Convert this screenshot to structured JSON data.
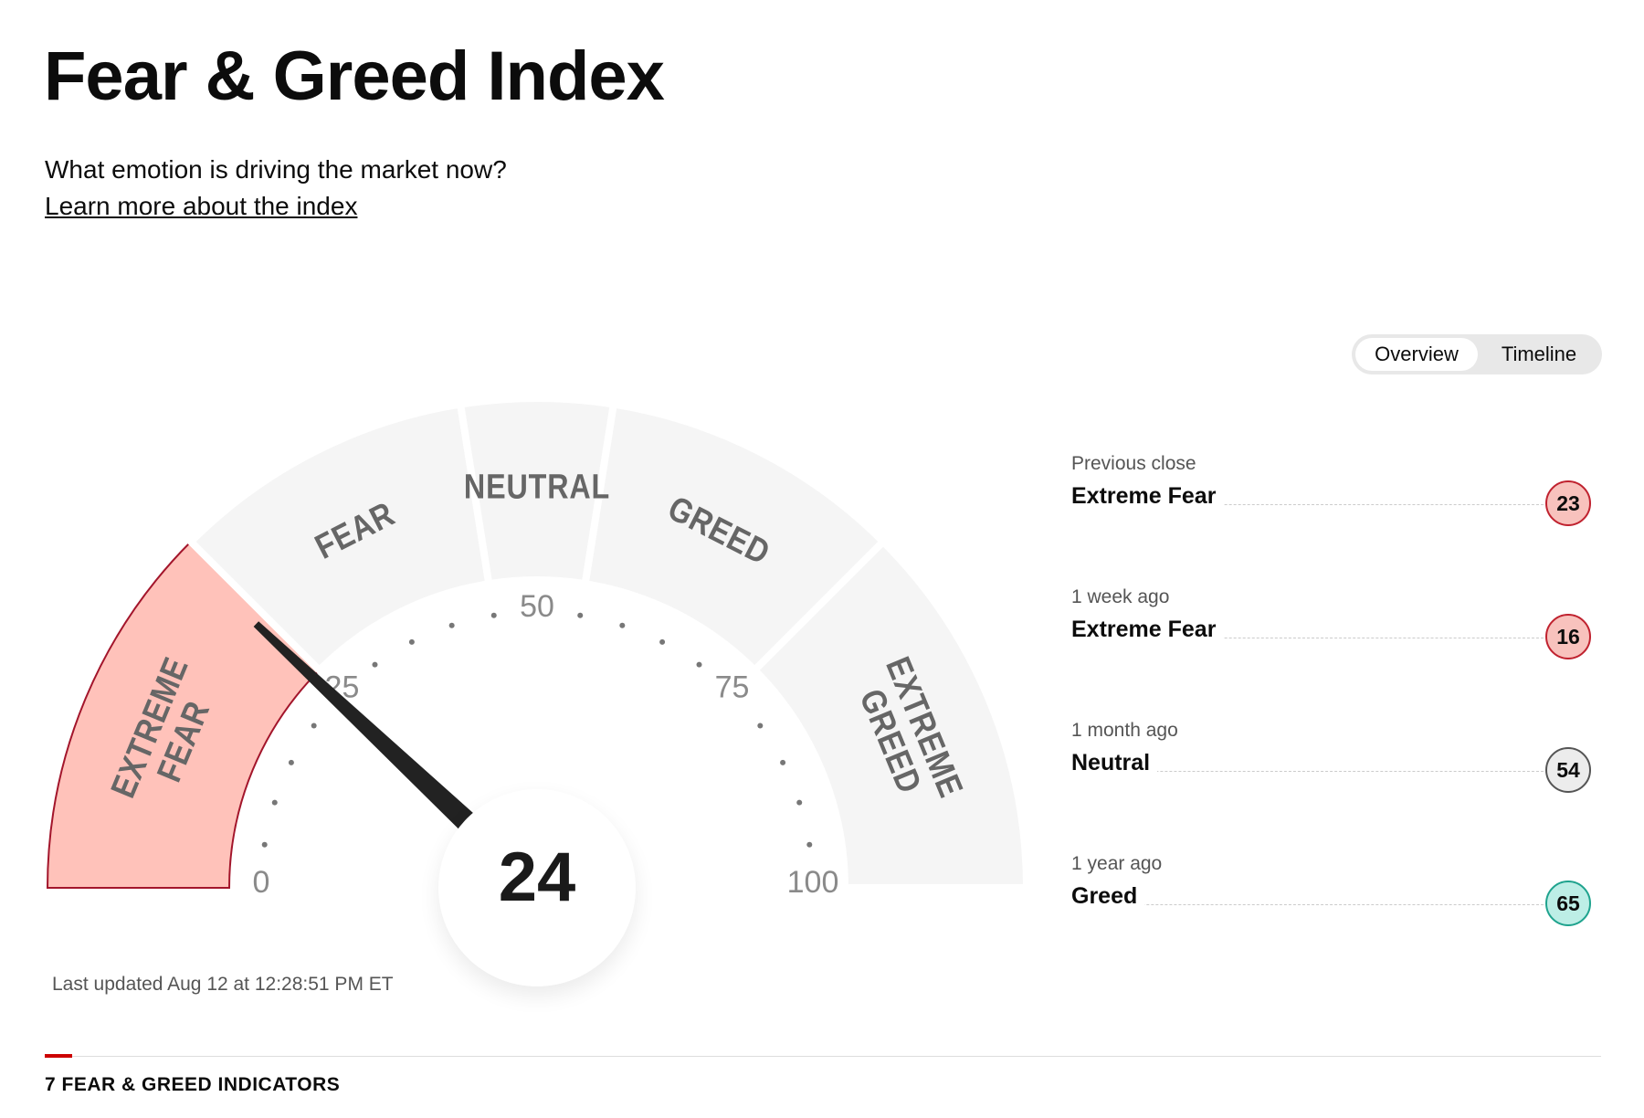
{
  "header": {
    "title": "Fear & Greed Index",
    "subtitle": "What emotion is driving the market now?",
    "link": "Learn more about the index"
  },
  "tabs": [
    "Overview",
    "Timeline"
  ],
  "gauge": {
    "value": 24,
    "range": [
      0,
      100
    ],
    "ticks": [
      0,
      25,
      50,
      75,
      100
    ],
    "segments": [
      [
        "EXTREME",
        "FEAR"
      ],
      [
        "FEAR"
      ],
      [
        "NEUTRAL"
      ],
      [
        "GREED"
      ],
      [
        "EXTREME",
        "GREED"
      ]
    ]
  },
  "history": [
    {
      "label": "Previous close",
      "rating": "Extreme Fear",
      "value": 23,
      "color": "#f8c2bd",
      "border": "#c0222f"
    },
    {
      "label": "1 week ago",
      "rating": "Extreme Fear",
      "value": 16,
      "color": "#f8c2bd",
      "border": "#c0222f"
    },
    {
      "label": "1 month ago",
      "rating": "Neutral",
      "value": 54,
      "color": "#ececec",
      "border": "#555555"
    },
    {
      "label": "1 year ago",
      "rating": "Greed",
      "value": 65,
      "color": "#bdeee6",
      "border": "#1fa38e"
    }
  ],
  "last_updated": "Last updated Aug 12 at 12:28:51 PM ET",
  "section_title": "7 FEAR & GREED INDICATORS"
}
